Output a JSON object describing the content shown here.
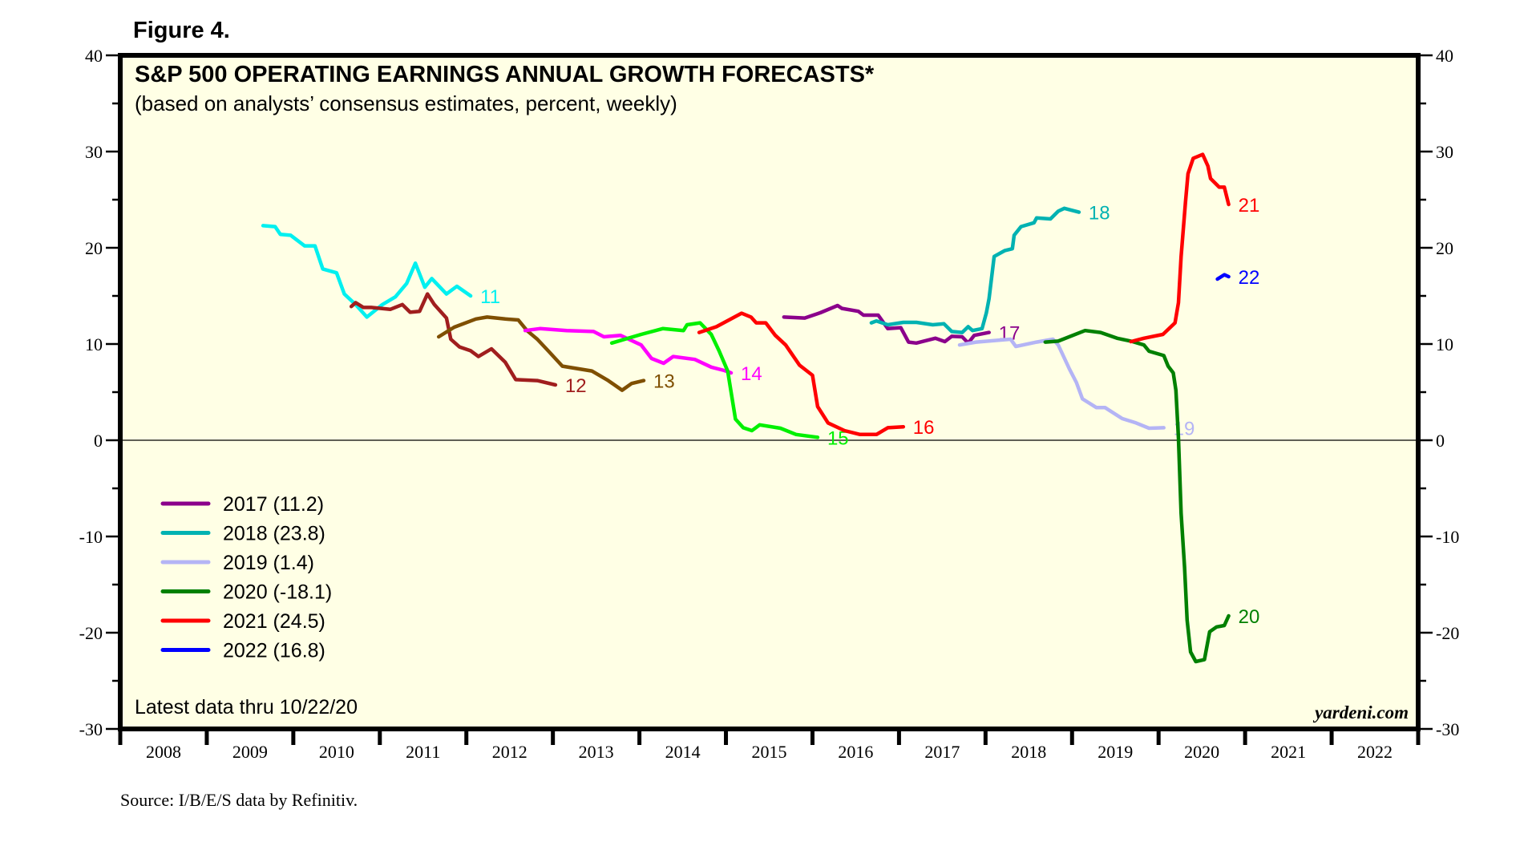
{
  "figure_label": "Figure 4.",
  "source": "Source: I/B/E/S data by Refinitiv.",
  "brand": "yardeni.com",
  "latest_note": "Latest data thru  10/22/20",
  "chart_data": {
    "type": "line",
    "title": "S&P 500 OPERATING EARNINGS ANNUAL GROWTH FORECASTS*",
    "subtitle": "(based on analysts’ consensus estimates, percent, weekly)",
    "xlabel": "",
    "ylabel": "",
    "xlim": [
      2008,
      2023
    ],
    "ylim": [
      -30,
      40
    ],
    "y_ticks": [
      40,
      30,
      20,
      10,
      0,
      -10,
      -20,
      -30
    ],
    "y_minor_step": 5,
    "y_axis_sides": [
      "left",
      "right"
    ],
    "x_tick_labels": [
      "2008",
      "2009",
      "2010",
      "2011",
      "2012",
      "2013",
      "2014",
      "2015",
      "2016",
      "2017",
      "2018",
      "2019",
      "2020",
      "2021",
      "2022"
    ],
    "zero_line": true,
    "grid": false,
    "legend_position": "bottom-left",
    "legend": [
      {
        "label": "2017 (11.2)",
        "color": "#8B008B"
      },
      {
        "label": "2018 (23.8)",
        "color": "#00B2B2"
      },
      {
        "label": "2019 (1.4)",
        "color": "#B4B4F5"
      },
      {
        "label": "2020 (-18.1)",
        "color": "#008000"
      },
      {
        "label": "2021 (24.5)",
        "color": "#FF0000"
      },
      {
        "label": "2022 (16.8)",
        "color": "#0000FF"
      }
    ],
    "series": [
      {
        "name": "2011",
        "label": "11",
        "color": "#00F0F0",
        "x": [
          2009.65,
          2009.79,
          2009.85,
          2009.97,
          2010.13,
          2010.25,
          2010.34,
          2010.5,
          2010.59,
          2010.72,
          2010.85,
          2011.03,
          2011.18,
          2011.31,
          2011.41,
          2011.52,
          2011.6,
          2011.77,
          2011.89,
          2012.05
        ],
        "y": [
          22.3,
          22.2,
          21.4,
          21.3,
          20.2,
          20.2,
          17.8,
          17.4,
          15.2,
          14.1,
          12.8,
          14.1,
          14.9,
          16.3,
          18.4,
          15.9,
          16.8,
          15.2,
          16.0,
          15.0
        ]
      },
      {
        "name": "2012",
        "label": "12",
        "color": "#A01E1E",
        "x": [
          2010.67,
          2010.72,
          2010.81,
          2010.9,
          2011.12,
          2011.26,
          2011.35,
          2011.46,
          2011.55,
          2011.63,
          2011.77,
          2011.82,
          2011.92,
          2012.05,
          2012.14,
          2012.29,
          2012.45,
          2012.57,
          2012.82,
          2013.03
        ],
        "y": [
          13.9,
          14.3,
          13.8,
          13.8,
          13.6,
          14.1,
          13.3,
          13.4,
          15.2,
          14.1,
          12.7,
          10.5,
          9.7,
          9.3,
          8.7,
          9.5,
          8.1,
          6.3,
          6.2,
          5.75
        ]
      },
      {
        "name": "2013",
        "label": "13",
        "color": "#7F4F00",
        "x": [
          2011.68,
          2011.86,
          2012.11,
          2012.24,
          2012.45,
          2012.6,
          2012.7,
          2012.82,
          2012.95,
          2013.11,
          2013.45,
          2013.64,
          2013.8,
          2013.91,
          2014.05
        ],
        "y": [
          10.75,
          11.75,
          12.6,
          12.8,
          12.6,
          12.5,
          11.4,
          10.5,
          9.25,
          7.7,
          7.2,
          6.2,
          5.2,
          5.9,
          6.2
        ]
      },
      {
        "name": "2014",
        "label": "14",
        "color": "#FF00FF",
        "x": [
          2012.68,
          2012.85,
          2013.16,
          2013.47,
          2013.59,
          2013.78,
          2014.02,
          2014.14,
          2014.28,
          2014.39,
          2014.64,
          2014.83,
          2014.98,
          2015.06
        ],
        "y": [
          11.4,
          11.6,
          11.4,
          11.3,
          10.75,
          10.9,
          9.9,
          8.5,
          8.0,
          8.7,
          8.4,
          7.6,
          7.25,
          7.0
        ]
      },
      {
        "name": "2015",
        "label": "15",
        "color": "#00F000",
        "x": [
          2013.68,
          2014.02,
          2014.27,
          2014.51,
          2014.55,
          2014.7,
          2014.83,
          2014.92,
          2015.02,
          2015.11,
          2015.2,
          2015.3,
          2015.39,
          2015.63,
          2015.81,
          2016.06
        ],
        "y": [
          10.1,
          11.0,
          11.6,
          11.4,
          12.0,
          12.2,
          11.0,
          9.3,
          7.2,
          2.2,
          1.3,
          1.0,
          1.6,
          1.25,
          0.6,
          0.3
        ]
      },
      {
        "name": "2016",
        "label": "16",
        "color": "#FF0000",
        "x": [
          2014.69,
          2014.89,
          2015.18,
          2015.29,
          2015.35,
          2015.46,
          2015.57,
          2015.69,
          2015.85,
          2016.0,
          2016.06,
          2016.18,
          2016.37,
          2016.55,
          2016.74,
          2016.87,
          2017.05
        ],
        "y": [
          11.2,
          11.8,
          13.2,
          12.8,
          12.2,
          12.2,
          10.9,
          9.9,
          7.8,
          6.75,
          3.5,
          1.8,
          1.0,
          0.6,
          0.6,
          1.3,
          1.4
        ]
      },
      {
        "name": "2017",
        "label": "17",
        "color": "#8B008B",
        "x": [
          2015.67,
          2015.91,
          2016.09,
          2016.29,
          2016.34,
          2016.53,
          2016.59,
          2016.76,
          2016.87,
          2017.02,
          2017.11,
          2017.2,
          2017.42,
          2017.53,
          2017.61,
          2017.73,
          2017.8,
          2017.87,
          2018.04
        ],
        "y": [
          12.8,
          12.7,
          13.25,
          14.0,
          13.7,
          13.4,
          13.0,
          13.0,
          11.6,
          11.7,
          10.2,
          10.1,
          10.6,
          10.25,
          10.8,
          10.75,
          10.1,
          10.9,
          11.2
        ]
      },
      {
        "name": "2018",
        "label": "18",
        "color": "#00B2B2",
        "x": [
          2016.68,
          2016.74,
          2016.87,
          2017.05,
          2017.2,
          2017.39,
          2017.52,
          2017.61,
          2017.73,
          2017.8,
          2017.85,
          2017.96,
          2018.01,
          2018.04,
          2018.1,
          2018.22,
          2018.31,
          2018.33,
          2018.41,
          2018.56,
          2018.59,
          2018.75,
          2018.84,
          2018.91,
          2019.08
        ],
        "y": [
          12.2,
          12.4,
          12.0,
          12.25,
          12.25,
          12.0,
          12.1,
          11.3,
          11.2,
          11.8,
          11.4,
          11.6,
          13.25,
          14.7,
          19.1,
          19.7,
          19.9,
          21.3,
          22.2,
          22.6,
          23.1,
          23.0,
          23.8,
          24.1,
          23.7
        ]
      },
      {
        "name": "2019",
        "label": "19",
        "color": "#B4B4F5",
        "x": [
          2017.7,
          2017.89,
          2018.29,
          2018.35,
          2018.59,
          2018.78,
          2018.84,
          2018.97,
          2019.05,
          2019.12,
          2019.28,
          2019.38,
          2019.58,
          2019.74,
          2019.89,
          2020.06
        ],
        "y": [
          9.9,
          10.2,
          10.5,
          9.75,
          10.2,
          10.5,
          9.9,
          7.4,
          6.0,
          4.3,
          3.4,
          3.4,
          2.25,
          1.8,
          1.25,
          1.3
        ]
      },
      {
        "name": "2020",
        "label": "20",
        "color": "#008000",
        "x": [
          2018.69,
          2018.84,
          2019.15,
          2019.33,
          2019.52,
          2019.68,
          2019.83,
          2019.89,
          2020.06,
          2020.11,
          2020.17,
          2020.2,
          2020.23,
          2020.26,
          2020.3,
          2020.33,
          2020.37,
          2020.43,
          2020.53,
          2020.59,
          2020.67,
          2020.76,
          2020.81
        ],
        "y": [
          10.2,
          10.3,
          11.4,
          11.2,
          10.6,
          10.3,
          9.9,
          9.25,
          8.8,
          7.7,
          7.0,
          5.2,
          0.2,
          -7.6,
          -13.2,
          -18.7,
          -22.0,
          -23.0,
          -22.8,
          -19.9,
          -19.4,
          -19.25,
          -18.25
        ]
      },
      {
        "name": "2021",
        "label": "21",
        "color": "#FF0000",
        "x": [
          2019.68,
          2019.83,
          2020.05,
          2020.19,
          2020.23,
          2020.26,
          2020.31,
          2020.34,
          2020.4,
          2020.51,
          2020.57,
          2020.6,
          2020.7,
          2020.76,
          2020.81
        ],
        "y": [
          10.25,
          10.6,
          11.0,
          12.2,
          14.3,
          19.1,
          24.7,
          27.7,
          29.3,
          29.7,
          28.5,
          27.2,
          26.3,
          26.3,
          24.5
        ]
      },
      {
        "name": "2022",
        "label": "22",
        "color": "#0000FF",
        "x": [
          2020.68,
          2020.76,
          2020.81
        ],
        "y": [
          16.75,
          17.2,
          17.0
        ]
      }
    ]
  }
}
